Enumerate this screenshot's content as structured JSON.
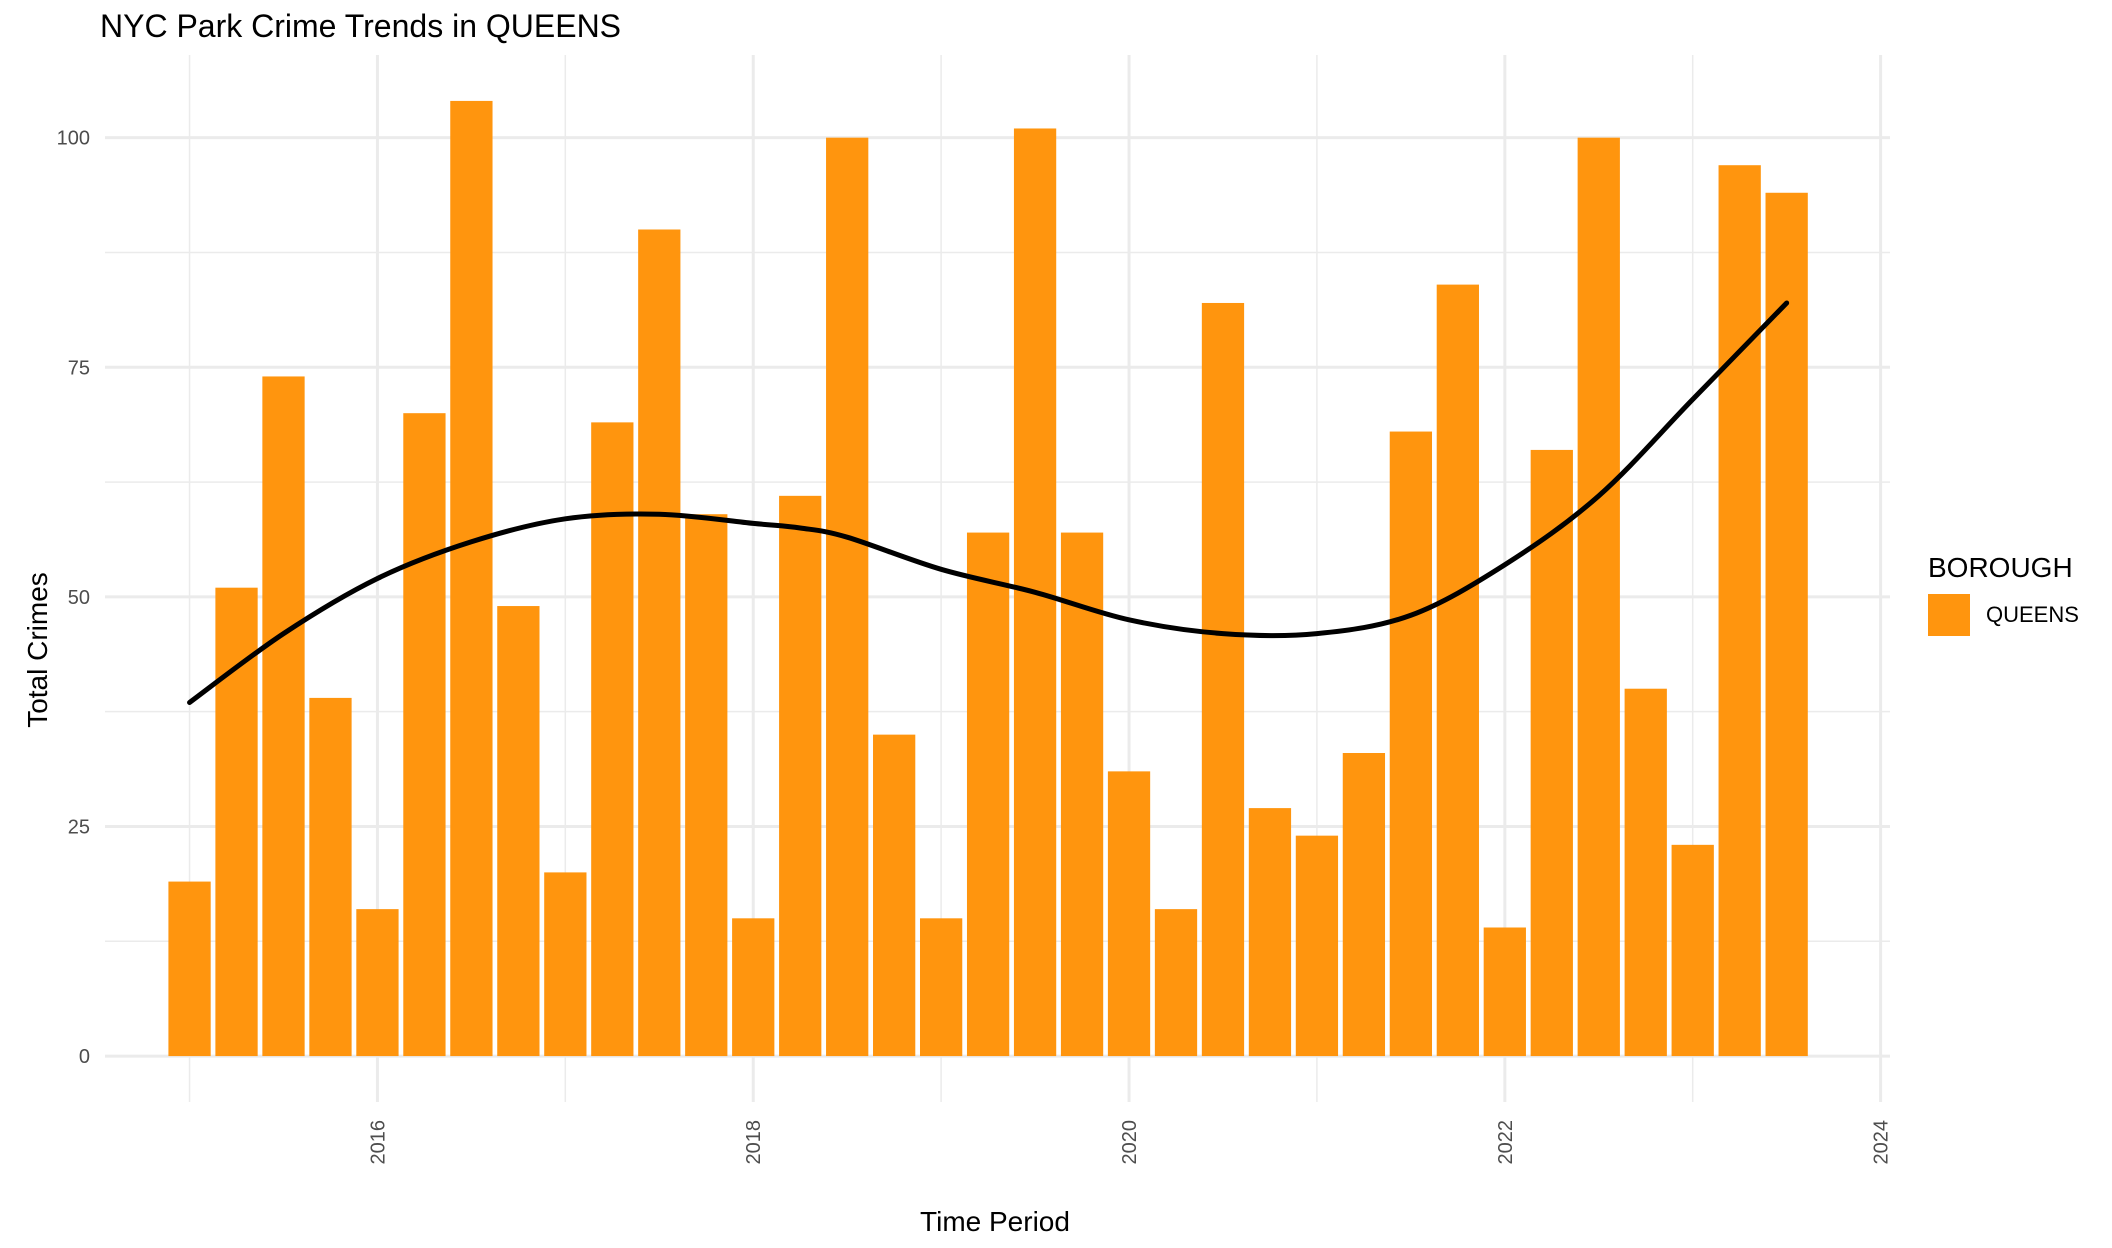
{
  "chart_data": {
    "type": "bar",
    "title": "NYC Park Crime Trends in QUEENS",
    "xlabel": "Time Period",
    "ylabel": "Total Crimes",
    "x_ticks": [
      "2016",
      "2018",
      "2020",
      "2022",
      "2024"
    ],
    "y_ticks": [
      "0",
      "25",
      "50",
      "75",
      "100"
    ],
    "xlim": [
      2014.55,
      2024.05
    ],
    "ylim": [
      -5,
      109
    ],
    "grid": true,
    "legend": {
      "title": "BOROUGH",
      "placement": "right",
      "entries": [
        {
          "label": "QUEENS",
          "color": "#FF950E"
        }
      ]
    },
    "series": [
      {
        "name": "QUEENS",
        "type": "bar",
        "color": "#FF950E",
        "x": [
          2015.0,
          2015.25,
          2015.5,
          2015.75,
          2016.0,
          2016.25,
          2016.5,
          2016.75,
          2017.0,
          2017.25,
          2017.5,
          2017.75,
          2018.0,
          2018.25,
          2018.5,
          2018.75,
          2019.0,
          2019.25,
          2019.5,
          2019.75,
          2020.0,
          2020.25,
          2020.5,
          2020.75,
          2021.0,
          2021.25,
          2021.5,
          2021.75,
          2022.0,
          2022.25,
          2022.5,
          2022.75,
          2023.0,
          2023.25,
          2023.5
        ],
        "values": [
          19,
          51,
          74,
          39,
          16,
          70,
          104,
          49,
          20,
          69,
          90,
          59,
          15,
          61,
          100,
          35,
          15,
          57,
          101,
          57,
          31,
          16,
          82,
          27,
          24,
          33,
          68,
          84,
          14,
          66,
          100,
          40,
          23,
          97,
          94
        ]
      },
      {
        "name": "trend",
        "type": "line",
        "color": "#000000",
        "x": [
          2015.0,
          2015.5,
          2016.0,
          2016.5,
          2017.0,
          2017.5,
          2018.0,
          2018.25,
          2018.5,
          2019.0,
          2019.5,
          2020.0,
          2020.5,
          2021.0,
          2021.5,
          2022.0,
          2022.5,
          2023.0,
          2023.5
        ],
        "values": [
          38.5,
          46,
          52,
          56,
          58.5,
          59,
          58,
          57.5,
          56.5,
          53,
          50.5,
          47.5,
          46,
          46,
          48,
          53.5,
          61,
          71.5,
          82
        ]
      }
    ]
  }
}
